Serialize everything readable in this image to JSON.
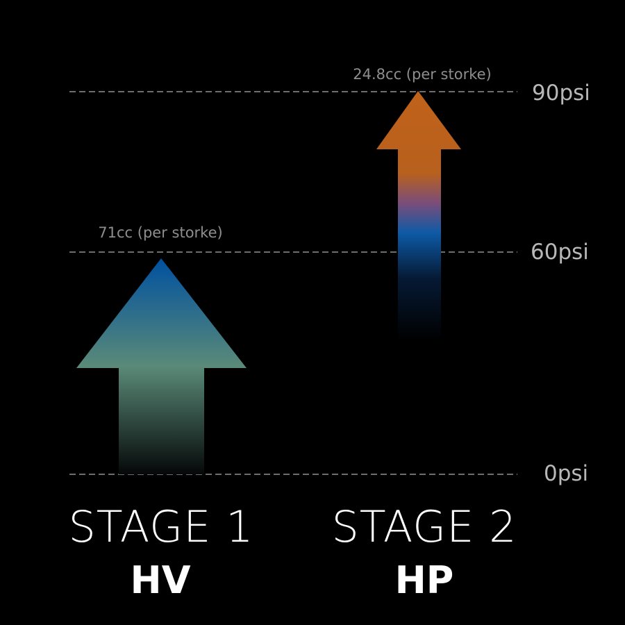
{
  "levels": [
    {
      "label": "90psi",
      "value": 90
    },
    {
      "label": "60psi",
      "value": 60
    },
    {
      "label": "0psi",
      "value": 0
    }
  ],
  "stages": [
    {
      "title": "STAGE 1",
      "mode": "HV",
      "volume_label": "71cc (per storke)",
      "colors": [
        "#0050a0",
        "#5a8a78",
        "#050808"
      ]
    },
    {
      "title": "STAGE 2",
      "mode": "HP",
      "volume_label": "24.8cc (per storke)",
      "colors": [
        "#c0621a",
        "#7a4d7a",
        "#0d5aa5",
        "#000000"
      ]
    }
  ],
  "colors": {
    "background": "#000000",
    "dashed_line": "#6e6e6e"
  }
}
